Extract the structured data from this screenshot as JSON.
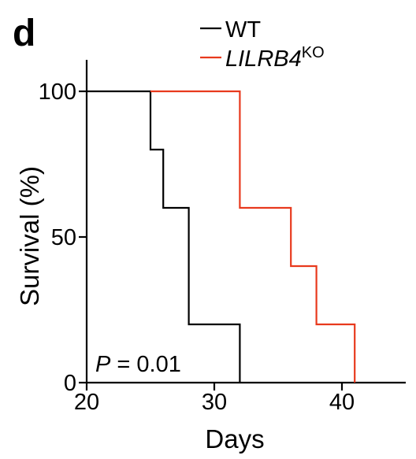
{
  "panel_label": "d",
  "chart_data": {
    "type": "line",
    "step": true,
    "xlabel": "Days",
    "ylabel": "Survival (%)",
    "xlim": [
      20,
      45
    ],
    "ylim": [
      0,
      100
    ],
    "xticks": [
      20,
      30,
      40
    ],
    "yticks": [
      0,
      50,
      100
    ],
    "grid": false,
    "legend_position": "top-center",
    "annotation": {
      "prefix": "P",
      "text": " = 0.01"
    },
    "series": [
      {
        "name": "WT",
        "color": "#000000",
        "x": [
          20,
          25,
          26,
          28,
          32
        ],
        "y": [
          100,
          80,
          60,
          20,
          0
        ]
      },
      {
        "name": "LILRB4",
        "name_superscript": "KO",
        "color": "#e8391d",
        "x": [
          25,
          32,
          36,
          38,
          41
        ],
        "y": [
          100,
          60,
          40,
          20,
          0
        ]
      }
    ]
  }
}
